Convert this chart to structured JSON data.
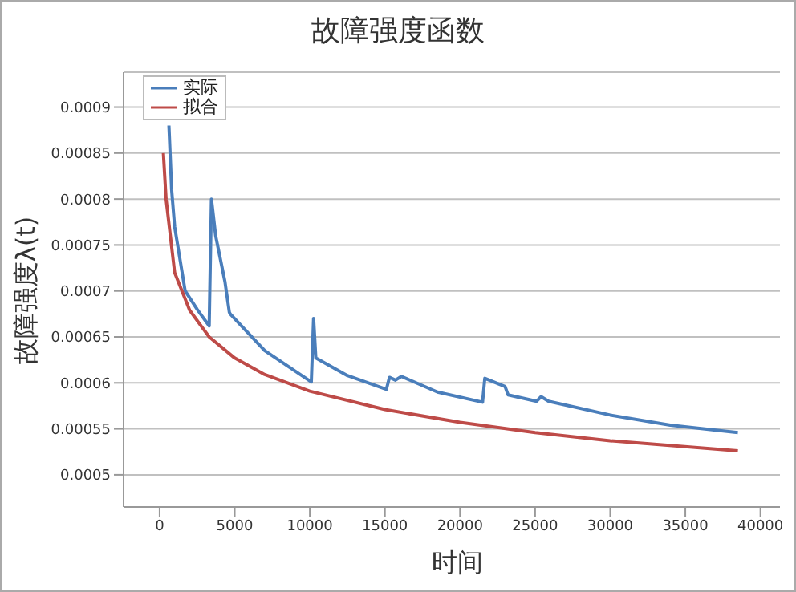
{
  "chart_data": {
    "type": "line",
    "title": "故障强度函数",
    "xlabel": "时间",
    "ylabel": "故障强度λ(t)",
    "xlim": [
      -2400,
      41300
    ],
    "xticks": [
      0,
      5000,
      10000,
      15000,
      20000,
      25000,
      30000,
      35000,
      40000
    ],
    "ylim": [
      0.000465,
      0.000938
    ],
    "yticks": [
      0.0005,
      0.00055,
      0.0006,
      0.00065,
      0.0007,
      0.00075,
      0.0008,
      0.00085,
      0.0009
    ],
    "grid": "y",
    "legend": "top left",
    "line_style": "solid",
    "marker": "none",
    "series": [
      {
        "name": "实际",
        "color": "#4a7ebb",
        "x": [
          620,
          800,
          1000,
          1700,
          2500,
          3300,
          3450,
          3730,
          4350,
          4640,
          4700,
          7000,
          10100,
          10250,
          10400,
          12500,
          15100,
          15300,
          15700,
          16100,
          18500,
          21500,
          21650,
          23000,
          23200,
          25100,
          25400,
          25900,
          30000,
          34000,
          38500
        ],
        "values": [
          0.00088,
          0.00081,
          0.00077,
          0.0007,
          0.00068,
          0.000662,
          0.0008,
          0.00076,
          0.00071,
          0.000677,
          0.000675,
          0.000635,
          0.000601,
          0.00067,
          0.000627,
          0.000608,
          0.000593,
          0.000606,
          0.000603,
          0.000607,
          0.00059,
          0.000579,
          0.000605,
          0.000596,
          0.000587,
          0.00058,
          0.000585,
          0.00058,
          0.000565,
          0.000554,
          0.000546
        ]
      },
      {
        "name": "拟合",
        "color": "#be4b48",
        "x": [
          250,
          430,
          1000,
          2000,
          3300,
          5000,
          7000,
          10000,
          15000,
          20000,
          25000,
          30000,
          38500
        ],
        "values": [
          0.00085,
          0.0008,
          0.00072,
          0.000679,
          0.00065,
          0.000627,
          0.000609,
          0.000591,
          0.000571,
          0.000557,
          0.000546,
          0.000537,
          0.000526
        ]
      }
    ]
  }
}
